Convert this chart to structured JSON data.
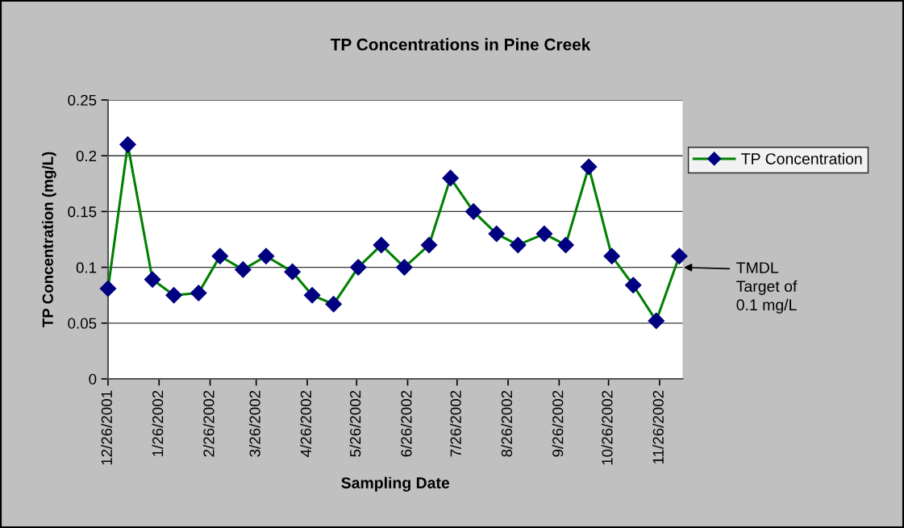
{
  "chart_data": {
    "type": "line",
    "title": "TP Concentrations in Pine Creek",
    "xlabel": "Sampling Date",
    "ylabel": "TP Concentration (mg/L)",
    "x": [
      "2001-12-26",
      "2002-01-07",
      "2002-01-22",
      "2002-02-04",
      "2002-02-19",
      "2002-03-04",
      "2002-03-18",
      "2002-04-01",
      "2002-04-17",
      "2002-04-29",
      "2002-05-12",
      "2002-05-27",
      "2002-06-10",
      "2002-06-24",
      "2002-07-09",
      "2002-07-22",
      "2002-08-05",
      "2002-08-19",
      "2002-09-01",
      "2002-09-17",
      "2002-09-30",
      "2002-10-14",
      "2002-10-28",
      "2002-11-10",
      "2002-11-24",
      "2002-12-08"
    ],
    "series": [
      {
        "name": "TP Concentration",
        "color": "#008000",
        "colors": [
          "#000080",
          "#000080",
          "#000080",
          "#000080",
          "#000080",
          "#000080",
          "#000080",
          "#000080",
          "#000080",
          "#000080",
          "#000080",
          "#000080",
          "#000080",
          "#000080",
          "#000080",
          "#000080",
          "#000080",
          "#000080",
          "#000080",
          "#000080",
          "#000080",
          "#000080",
          "#000080",
          "#000080",
          "#000080",
          "#000080"
        ],
        "values": [
          0.081,
          0.21,
          0.089,
          0.075,
          0.077,
          0.11,
          0.098,
          0.11,
          0.096,
          0.075,
          0.067,
          0.1,
          0.12,
          0.1,
          0.12,
          0.18,
          0.15,
          0.13,
          0.12,
          0.13,
          0.12,
          0.19,
          0.11,
          0.084,
          0.052,
          0.11
        ]
      }
    ],
    "xlim": [
      "2001-12-26",
      "2002-12-10"
    ],
    "xticks": [
      {
        "value": "2001-12-26",
        "label": "12/26/2001"
      },
      {
        "value": "2002-01-26",
        "label": "1/26/2002"
      },
      {
        "value": "2002-02-26",
        "label": "2/26/2002"
      },
      {
        "value": "2002-03-26",
        "label": "3/26/2002"
      },
      {
        "value": "2002-04-26",
        "label": "4/26/2002"
      },
      {
        "value": "2002-05-26",
        "label": "5/26/2002"
      },
      {
        "value": "2002-06-26",
        "label": "6/26/2002"
      },
      {
        "value": "2002-07-26",
        "label": "7/26/2002"
      },
      {
        "value": "2002-08-26",
        "label": "8/26/2002"
      },
      {
        "value": "2002-09-26",
        "label": "9/26/2002"
      },
      {
        "value": "2002-10-26",
        "label": "10/26/2002"
      },
      {
        "value": "2002-11-26",
        "label": "11/26/2002"
      }
    ],
    "ylim": [
      0,
      0.25
    ],
    "yticks": [
      0,
      0.05,
      0.1,
      0.15,
      0.2,
      0.25
    ],
    "grid": "y",
    "legend": "top right",
    "marker": "diamond",
    "line_style": "solid",
    "annotations": [
      "TMDL\nTarget of\n0.1 mg/L"
    ]
  }
}
